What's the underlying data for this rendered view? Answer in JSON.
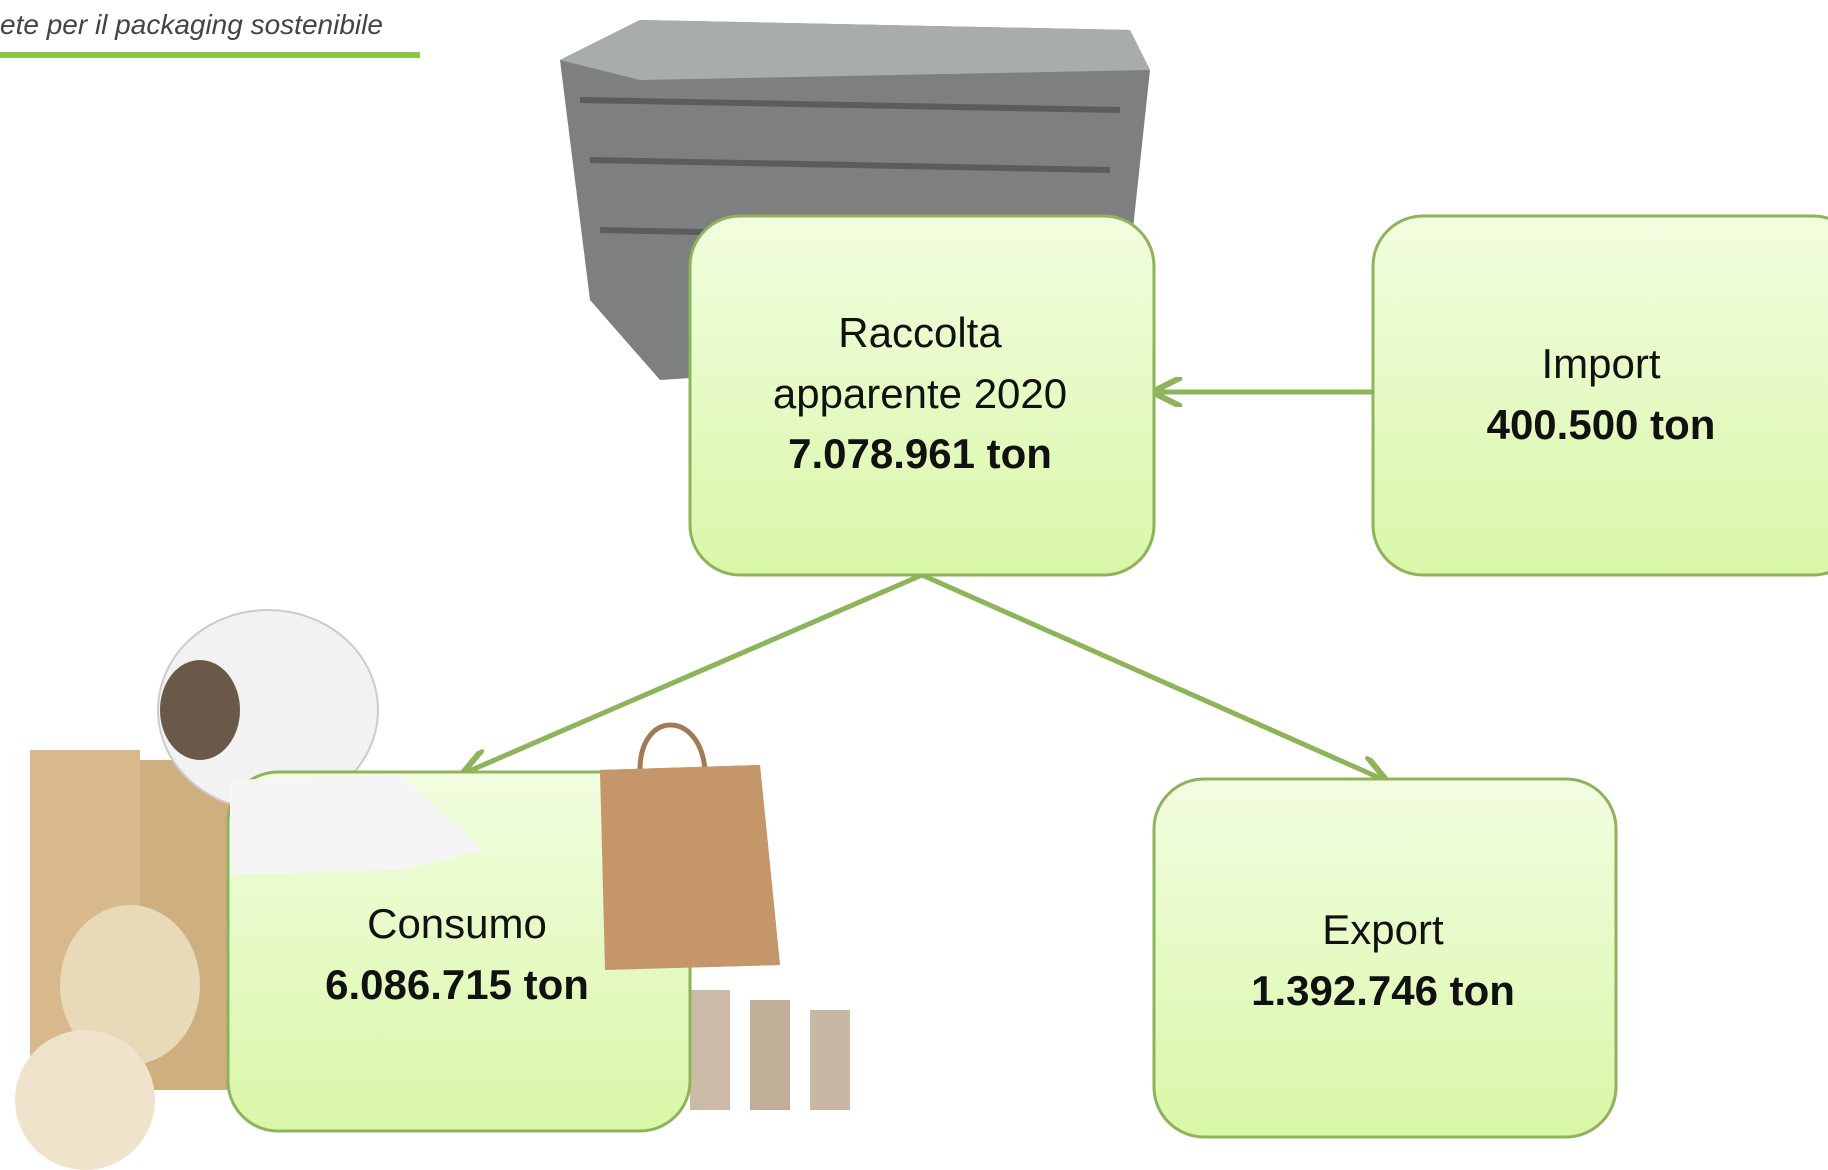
{
  "header": {
    "tagline": "ete per il packaging sostenibile"
  },
  "nodes": [
    {
      "label": [
        "Raccolta",
        "apparente 2020"
      ],
      "value": "7.078.961 ton"
    },
    {
      "label": [
        "Import"
      ],
      "value": "400.500 ton"
    },
    {
      "label": [
        "Consumo"
      ],
      "value": "6.086.715 ton"
    },
    {
      "label": [
        "Export"
      ],
      "value": "1.392.746 ton"
    }
  ]
}
